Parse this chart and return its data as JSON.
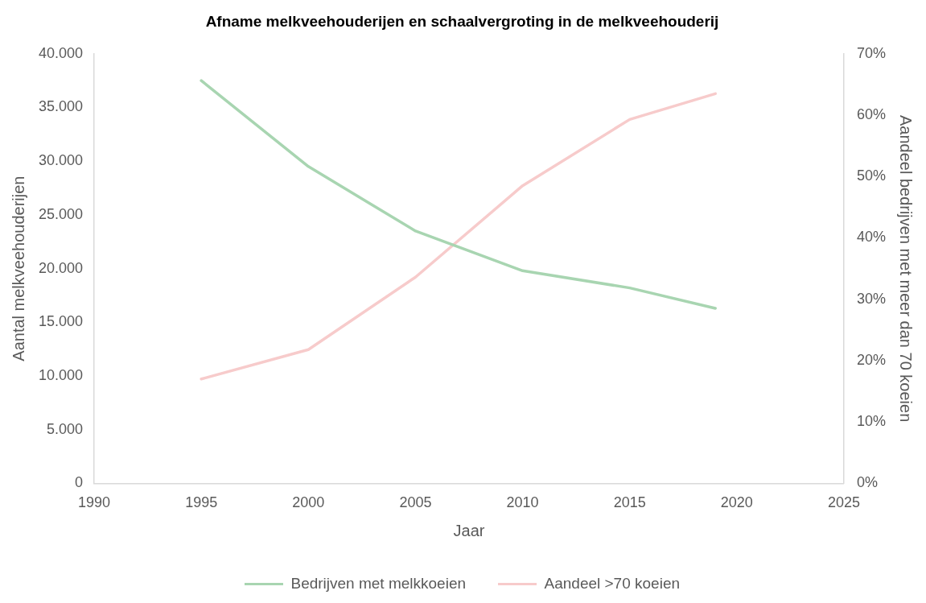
{
  "chart_data": {
    "type": "line",
    "title": "Afname melkveehouderijen en schaalvergroting in de melkveehouderij",
    "xlabel": "Jaar",
    "ylabel": "Aantal melkveehouderijen",
    "y2label": "Aandeel bedrijven met meer dan 70 koeien",
    "x": [
      1995,
      2000,
      2005,
      2010,
      2015,
      2019
    ],
    "series": [
      {
        "name": "Bedrijven met melkkoeien",
        "color": "#a8d5b1",
        "values": [
          37500,
          29500,
          23500,
          19800,
          18200,
          16300
        ]
      },
      {
        "name": "Aandeel >70 koeien",
        "color": "#f7cbcb",
        "axis": "y2",
        "values": [
          17,
          21.8,
          33.6,
          48.5,
          59.3,
          63.5
        ]
      }
    ],
    "xlim": [
      1990,
      2025
    ],
    "xticks": [
      1990,
      1995,
      2000,
      2005,
      2010,
      2015,
      2020,
      2025
    ],
    "ylim": [
      0,
      40000
    ],
    "yticks": [
      0,
      {
        "value": 5000,
        "label": "5.000"
      },
      {
        "value": 10000,
        "label": "10.000"
      },
      {
        "value": 15000,
        "label": "15.000"
      },
      {
        "value": 20000,
        "label": "20.000"
      },
      {
        "value": 25000,
        "label": "25.000"
      },
      {
        "value": 30000,
        "label": "30.000"
      },
      {
        "value": 35000,
        "label": "35.000"
      },
      {
        "value": 40000,
        "label": "40.000"
      }
    ],
    "y2lim": [
      0,
      70
    ],
    "y2ticks": [
      {
        "value": 0,
        "label": "0%"
      },
      {
        "value": 10,
        "label": "10%"
      },
      {
        "value": 20,
        "label": "20%"
      },
      {
        "value": 30,
        "label": "30%"
      },
      {
        "value": 40,
        "label": "40%"
      },
      {
        "value": 50,
        "label": "50%"
      },
      {
        "value": 60,
        "label": "60%"
      },
      {
        "value": 70,
        "label": "70%"
      }
    ],
    "grid": false,
    "legend": "bottom",
    "marker": "none",
    "line_style": "solid"
  }
}
